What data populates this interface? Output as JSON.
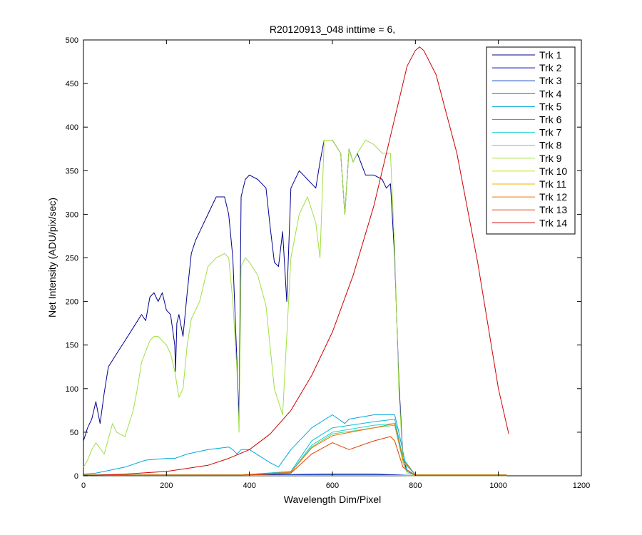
{
  "chart_data": {
    "type": "line",
    "title": "R20120913_048 inttime = 6,",
    "xlabel": "Wavelength Dim/Pixel",
    "ylabel": "Net Intensity (ADU/pix/sec)",
    "xlim": [
      0,
      1200
    ],
    "ylim": [
      0,
      500
    ],
    "xticks": [
      "0",
      "200",
      "400",
      "600",
      "800",
      "1000",
      "1200"
    ],
    "yticks": [
      "0",
      "50",
      "100",
      "150",
      "200",
      "250",
      "300",
      "350",
      "400",
      "450",
      "500"
    ],
    "legend_position": "top-right",
    "grid": false,
    "series": [
      {
        "name": "Trk 1",
        "color": "#00008f",
        "x": [
          0,
          10,
          20,
          30,
          40,
          50,
          60,
          80,
          100,
          120,
          140,
          150,
          160,
          170,
          180,
          190,
          200,
          210,
          220,
          222,
          225,
          230,
          240,
          250,
          260,
          270,
          280,
          300,
          320,
          340,
          350,
          360,
          370,
          375,
          380,
          390,
          400,
          420,
          440,
          450,
          460,
          470,
          480,
          490,
          500,
          520,
          540,
          560,
          570,
          580,
          600,
          620,
          630,
          640,
          650,
          660,
          680,
          700,
          720,
          730,
          740,
          750,
          760,
          770,
          780,
          800,
          1020
        ],
        "y": [
          40,
          55,
          65,
          85,
          60,
          95,
          125,
          140,
          155,
          170,
          185,
          178,
          205,
          210,
          200,
          210,
          190,
          185,
          150,
          120,
          175,
          185,
          160,
          210,
          255,
          270,
          280,
          300,
          320,
          320,
          300,
          250,
          130,
          65,
          320,
          340,
          345,
          340,
          330,
          285,
          245,
          240,
          280,
          200,
          330,
          350,
          340,
          330,
          360,
          385,
          385,
          370,
          300,
          375,
          360,
          370,
          345,
          345,
          340,
          330,
          335,
          250,
          110,
          20,
          5,
          1,
          1
        ]
      },
      {
        "name": "Trk 2",
        "color": "#0000b8",
        "x": [
          0,
          100,
          380,
          390,
          500,
          580,
          700,
          760,
          780,
          800,
          1020
        ],
        "y": [
          1,
          1,
          1,
          1.5,
          1.5,
          2,
          2,
          1,
          0.5,
          0.5,
          0.5
        ]
      },
      {
        "name": "Trk 3",
        "color": "#0040c0",
        "x": [
          0,
          100,
          380,
          500,
          600,
          700,
          760,
          780,
          1020
        ],
        "y": [
          0.5,
          0.5,
          0.8,
          1,
          1,
          1,
          0.5,
          0.3,
          0.3
        ]
      },
      {
        "name": "Trk 4",
        "color": "#0080a0",
        "x": [
          0,
          300,
          500,
          700,
          1020
        ],
        "y": [
          0.5,
          0.5,
          0.5,
          0.5,
          0.5
        ]
      },
      {
        "name": "Trk 5",
        "color": "#00a8e0",
        "x": [
          0,
          30,
          50,
          100,
          150,
          200,
          220,
          250,
          300,
          350,
          360,
          370,
          380,
          390,
          400,
          450,
          470,
          500,
          550,
          600,
          630,
          640,
          700,
          750,
          760,
          780,
          800,
          1020
        ],
        "y": [
          2,
          3,
          5,
          10,
          18,
          20,
          20,
          25,
          30,
          33,
          30,
          25,
          30,
          30,
          30,
          15,
          10,
          30,
          55,
          70,
          60,
          65,
          70,
          70,
          50,
          5,
          1,
          1
        ]
      },
      {
        "name": "Trk 6",
        "color": "#00c0d0",
        "x": [
          0,
          380,
          500,
          550,
          600,
          700,
          750,
          770,
          800,
          1020
        ],
        "y": [
          1,
          1,
          5,
          40,
          55,
          62,
          65,
          20,
          1,
          1
        ]
      },
      {
        "name": "Trk 7",
        "color": "#20d0d0",
        "x": [
          0,
          380,
          500,
          550,
          600,
          700,
          750,
          770,
          800,
          1020
        ],
        "y": [
          1,
          1,
          4,
          35,
          50,
          58,
          60,
          18,
          1,
          1
        ]
      },
      {
        "name": "Trk 8",
        "color": "#60d080",
        "x": [
          0,
          380,
          500,
          550,
          600,
          700,
          750,
          770,
          800,
          1020
        ],
        "y": [
          1,
          1,
          4,
          33,
          48,
          55,
          58,
          16,
          1,
          1
        ]
      },
      {
        "name": "Trk 9",
        "color": "#a0e040",
        "x": [
          0,
          10,
          20,
          30,
          50,
          70,
          80,
          100,
          120,
          130,
          140,
          160,
          170,
          180,
          200,
          210,
          220,
          230,
          240,
          250,
          260,
          280,
          300,
          320,
          340,
          350,
          360,
          370,
          375,
          380,
          390,
          400,
          420,
          440,
          460,
          480,
          500,
          520,
          540,
          560,
          570,
          580,
          600,
          620,
          630,
          640,
          650,
          660,
          680,
          700,
          720,
          740,
          750,
          760,
          770,
          780,
          800,
          1020
        ],
        "y": [
          10,
          18,
          30,
          38,
          25,
          60,
          50,
          45,
          75,
          100,
          130,
          155,
          160,
          160,
          150,
          140,
          120,
          90,
          100,
          150,
          180,
          200,
          240,
          250,
          255,
          250,
          200,
          120,
          50,
          240,
          250,
          245,
          230,
          195,
          100,
          70,
          250,
          300,
          320,
          290,
          250,
          385,
          385,
          370,
          300,
          375,
          360,
          370,
          385,
          380,
          370,
          370,
          260,
          100,
          15,
          3,
          1,
          1
        ]
      },
      {
        "name": "Trk 10",
        "color": "#d0e000",
        "x": [
          0,
          300,
          600,
          760,
          780,
          1020
        ],
        "y": [
          0.3,
          0.3,
          0.3,
          0.3,
          0.2,
          0.2
        ]
      },
      {
        "name": "Trk 11",
        "color": "#f0b000",
        "x": [
          0,
          300,
          600,
          760,
          780,
          1020
        ],
        "y": [
          0.5,
          0.5,
          0.5,
          0.5,
          0.3,
          0.3
        ]
      },
      {
        "name": "Trk 12",
        "color": "#f07000",
        "x": [
          0,
          380,
          500,
          550,
          600,
          700,
          750,
          770,
          800,
          1020
        ],
        "y": [
          1,
          1,
          4,
          32,
          46,
          55,
          60,
          18,
          1,
          1
        ]
      },
      {
        "name": "Trk 13",
        "color": "#e04000",
        "x": [
          0,
          380,
          500,
          550,
          600,
          640,
          700,
          740,
          750,
          770,
          800,
          1020
        ],
        "y": [
          0.5,
          0.5,
          3,
          25,
          38,
          30,
          40,
          45,
          40,
          10,
          0.5,
          0.5
        ]
      },
      {
        "name": "Trk 14",
        "color": "#d00000",
        "x": [
          0,
          100,
          200,
          300,
          350,
          400,
          450,
          500,
          550,
          600,
          650,
          700,
          750,
          780,
          800,
          810,
          820,
          850,
          900,
          950,
          1000,
          1025
        ],
        "y": [
          0,
          2,
          5,
          12,
          20,
          30,
          48,
          75,
          115,
          165,
          230,
          310,
          410,
          470,
          488,
          492,
          488,
          460,
          370,
          245,
          100,
          48
        ]
      }
    ]
  }
}
